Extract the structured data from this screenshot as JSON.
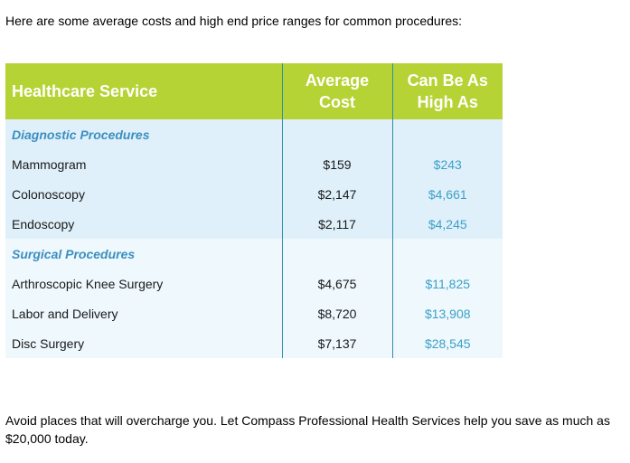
{
  "intro_text": "Here are some average costs and high end price ranges for common procedures:",
  "table": {
    "headers": {
      "service": "Healthcare Service",
      "average_line1": "Average",
      "average_line2": "Cost",
      "high_line1": "Can Be As",
      "high_line2": "High As"
    },
    "sections": [
      {
        "title": "Diagnostic Procedures",
        "rows": [
          {
            "service": "Mammogram",
            "average": "$159",
            "high": "$243"
          },
          {
            "service": "Colonoscopy",
            "average": "$2,147",
            "high": "$4,661"
          },
          {
            "service": "Endoscopy",
            "average": "$2,117",
            "high": "$4,245"
          }
        ]
      },
      {
        "title": "Surgical Procedures",
        "rows": [
          {
            "service": "Arthroscopic Knee Surgery",
            "average": "$4,675",
            "high": "$11,825"
          },
          {
            "service": "Labor and Delivery",
            "average": "$8,720",
            "high": "$13,908"
          },
          {
            "service": "Disc Surgery",
            "average": "$7,137",
            "high": "$28,545"
          }
        ]
      }
    ]
  },
  "outro_text": "Avoid places that will overcharge you. Let Compass Professional Health Services help you save as much as $20,000 today.",
  "colors": {
    "header_bg": "#b5d334",
    "diagnostic_bg": "#dff0fa",
    "surgical_bg": "#eef8fd",
    "section_title": "#3b8fc0",
    "high_value": "#3ca0c8",
    "divider": "#2f8fa8"
  }
}
